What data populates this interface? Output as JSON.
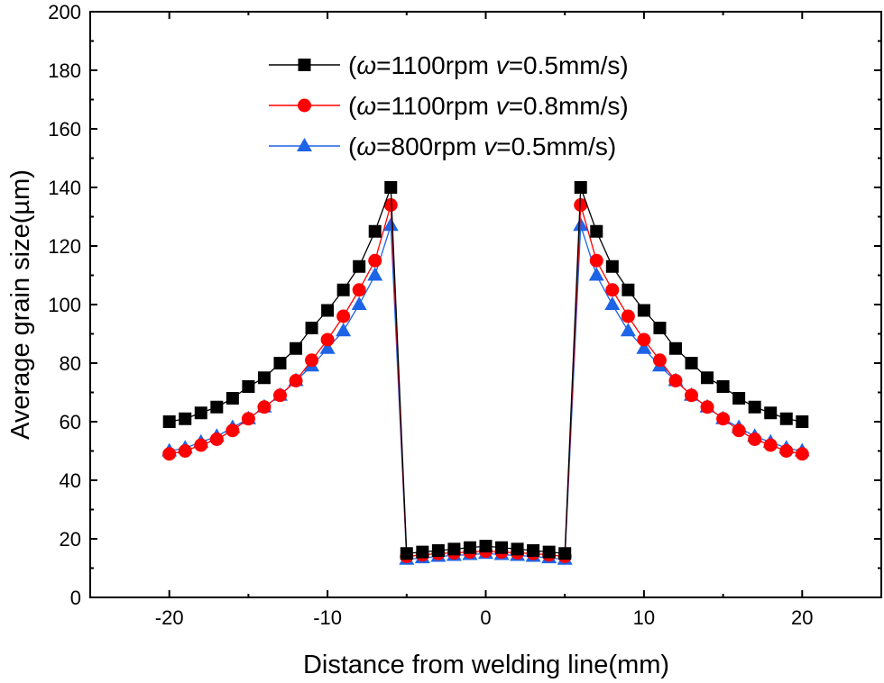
{
  "chart_data": {
    "type": "line",
    "title": "",
    "xlabel": "Distance from welding line(mm)",
    "ylabel": "Average grain size(µm)",
    "xlim": [
      -25,
      25
    ],
    "ylim": [
      0,
      200
    ],
    "xticks": [
      -20,
      -10,
      0,
      10,
      20
    ],
    "yticks": [
      0,
      20,
      40,
      60,
      80,
      100,
      120,
      140,
      160,
      180,
      200
    ],
    "x": [
      -20,
      -19,
      -18,
      -17,
      -16,
      -15,
      -14,
      -13,
      -12,
      -11,
      -10,
      -9,
      -8,
      -7,
      -6,
      -5,
      -4,
      -3,
      -2,
      -1,
      0,
      1,
      2,
      3,
      4,
      5,
      6,
      7,
      8,
      9,
      10,
      11,
      12,
      13,
      14,
      15,
      16,
      17,
      18,
      19,
      20
    ],
    "legend_position": "top-center",
    "series": [
      {
        "legend_prefix": "(",
        "legend_var1": "ω",
        "legend_mid": "=1100rpm ",
        "legend_var2": "v",
        "legend_suffix": "=0.5mm/s)",
        "color": "#000000",
        "marker": "square",
        "values": [
          60,
          61,
          63,
          65,
          68,
          72,
          75,
          80,
          85,
          92,
          98,
          105,
          113,
          125,
          140,
          15,
          15.5,
          16,
          16.5,
          17,
          17.5,
          17,
          16.5,
          16,
          15.5,
          15,
          140,
          125,
          113,
          105,
          98,
          92,
          85,
          80,
          75,
          72,
          68,
          65,
          63,
          61,
          60
        ]
      },
      {
        "legend_prefix": "(",
        "legend_var1": "ω",
        "legend_mid": "=1100rpm ",
        "legend_var2": "v",
        "legend_suffix": "=0.8mm/s)",
        "color": "#ff0000",
        "marker": "circle",
        "values": [
          49,
          50,
          52,
          54,
          57,
          61,
          65,
          69,
          74,
          81,
          88,
          96,
          105,
          115,
          134,
          14,
          14.5,
          15,
          15.2,
          15.5,
          15.8,
          15.5,
          15.2,
          15,
          14.5,
          14,
          134,
          115,
          105,
          96,
          88,
          81,
          74,
          69,
          65,
          61,
          57,
          54,
          52,
          50,
          49
        ]
      },
      {
        "legend_prefix": "(",
        "legend_var1": "ω",
        "legend_mid": "=800rpm ",
        "legend_var2": "v",
        "legend_suffix": "=0.5mm/s)",
        "color": "#1e64e6",
        "marker": "triangle",
        "values": [
          50,
          51,
          53,
          55,
          58,
          61,
          65,
          69,
          74,
          79,
          85,
          91,
          100,
          110,
          127,
          13,
          13.5,
          14,
          14.3,
          14.6,
          15,
          14.6,
          14.3,
          14,
          13.5,
          13,
          127,
          110,
          100,
          91,
          85,
          79,
          74,
          69,
          65,
          61,
          58,
          55,
          53,
          51,
          50
        ]
      }
    ]
  }
}
